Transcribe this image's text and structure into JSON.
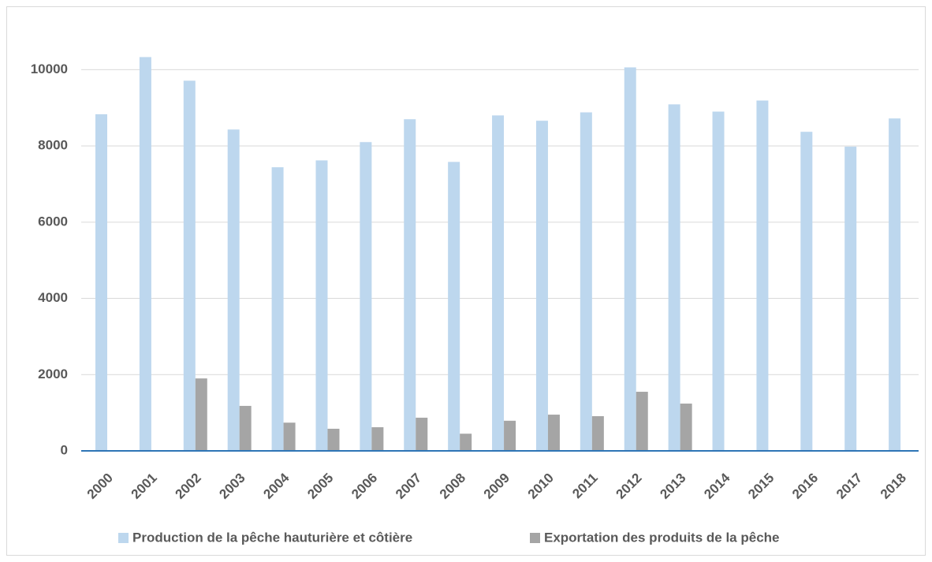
{
  "chart_data": {
    "type": "bar",
    "categories": [
      "2000",
      "2001",
      "2002",
      "2003",
      "2004",
      "2005",
      "2006",
      "2007",
      "2008",
      "2009",
      "2010",
      "2011",
      "2012",
      "2013",
      "2014",
      "2015",
      "2016",
      "2017",
      "2018"
    ],
    "series": [
      {
        "name": "Production de la pêche hauturière et côtière",
        "color": "#bdd7ee",
        "values": [
          8830,
          10330,
          9710,
          8430,
          7440,
          7620,
          8100,
          8700,
          7580,
          8800,
          8660,
          8880,
          10060,
          9090,
          8900,
          9190,
          8370,
          7980,
          8720
        ]
      },
      {
        "name": "Exportation des produits de la pêche",
        "color": "#a5a5a5",
        "values": [
          null,
          null,
          1900,
          1180,
          740,
          580,
          620,
          870,
          450,
          790,
          950,
          910,
          1550,
          1240,
          null,
          null,
          null,
          null,
          null
        ]
      }
    ],
    "ylim": [
      0,
      11000
    ],
    "yticks": [
      0,
      2000,
      4000,
      6000,
      8000,
      10000
    ],
    "grid": true,
    "legend": "bottom"
  }
}
